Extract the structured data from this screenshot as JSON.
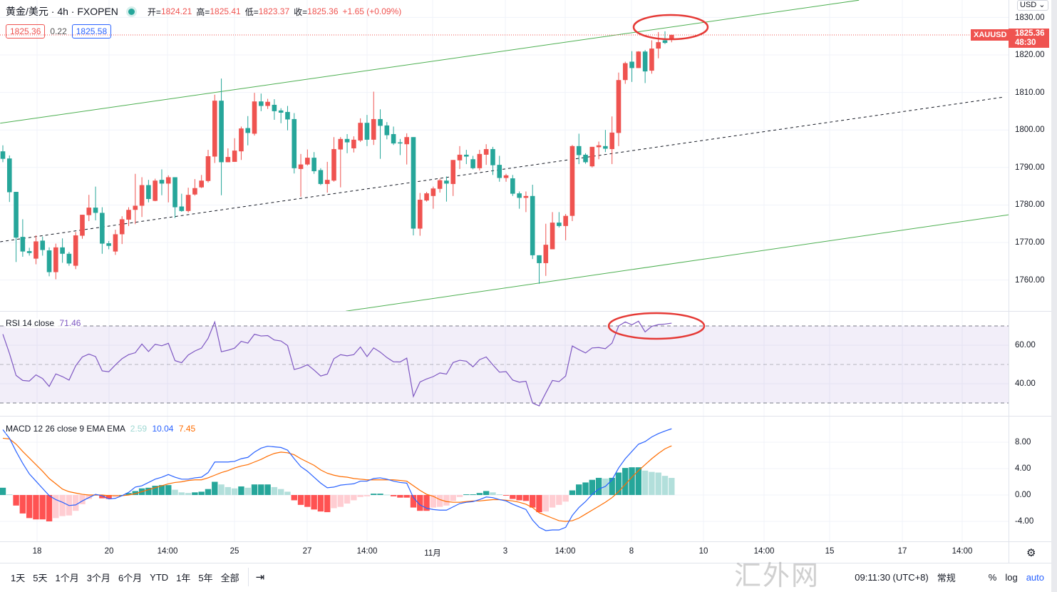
{
  "header": {
    "title": "黄金/美元 · 4h · FXOPEN",
    "open_label": "开=",
    "open": "1824.21",
    "high_label": "高=",
    "high": "1825.41",
    "low_label": "低=",
    "low": "1823.37",
    "close_label": "收=",
    "close": "1825.36",
    "change": "+1.65 (+0.09%)",
    "bid": "1825.36",
    "spread": "0.22",
    "ask": "1825.58"
  },
  "price_tag": {
    "symbol": "XAUUSD",
    "price": "1825.36",
    "countdown": "48:30"
  },
  "currency_button": "USD",
  "rsi_legend": {
    "label": "RSI 14 close",
    "value": "71.46"
  },
  "macd_legend": {
    "label": "MACD 12 26 close 9 EMA EMA",
    "hist": "2.59",
    "macd": "10.04",
    "signal": "7.45"
  },
  "colors": {
    "up": "#ef5350",
    "down": "#26a69a",
    "rsi": "#7e57c2",
    "macd": "#2962ff",
    "signal": "#ff6d00",
    "channel": "#4caf50",
    "annotation": "#e53935"
  },
  "time_axis": [
    "18",
    "20",
    "14:00",
    "25",
    "27",
    "14:00",
    "11月",
    "3",
    "14:00",
    "8",
    "10",
    "14:00",
    "15",
    "17",
    "14:00"
  ],
  "bottom_bar": {
    "ranges": [
      "1天",
      "5天",
      "1个月",
      "3个月",
      "6个月",
      "YTD",
      "1年",
      "5年",
      "全部"
    ],
    "clock": "09:11:30 (UTC+8)",
    "session": "常规",
    "percent": "%",
    "log": "log",
    "auto": "auto"
  },
  "watermark": "汇外网",
  "chart_data": [
    {
      "type": "candlestick",
      "title": "黄金/美元 · 4h · FXOPEN",
      "ylim": [
        1750,
        1832
      ],
      "yticks": [
        "1830.00",
        "1820.00",
        "1810.00",
        "1800.00",
        "1790.00",
        "1780.00",
        "1770.00",
        "1760.00"
      ],
      "ytick_values": [
        1830,
        1820,
        1810,
        1800,
        1790,
        1780,
        1770,
        1760
      ],
      "last_price": 1825.36,
      "ohlc": [
        [
          1794.3,
          1795.9,
          1791.4,
          1792.3
        ],
        [
          1792.4,
          1793.2,
          1780.8,
          1783.4
        ],
        [
          1783.5,
          1783.5,
          1764.8,
          1771.3
        ],
        [
          1771.5,
          1776.2,
          1766.2,
          1767.6
        ],
        [
          1767.7,
          1768.6,
          1766.5,
          1767.2
        ],
        [
          1765.7,
          1771.9,
          1764.2,
          1770.3
        ],
        [
          1770.5,
          1771.6,
          1766.5,
          1768.0
        ],
        [
          1767.9,
          1768.7,
          1761.0,
          1762.1
        ],
        [
          1762.1,
          1769.7,
          1760.2,
          1768.7
        ],
        [
          1768.7,
          1771.1,
          1764.6,
          1767.0
        ],
        [
          1767.0,
          1767.5,
          1763.8,
          1764.4
        ],
        [
          1763.8,
          1772.8,
          1762.9,
          1771.9
        ],
        [
          1771.8,
          1777.4,
          1771.0,
          1777.4
        ],
        [
          1777.3,
          1782.7,
          1775.7,
          1779.3
        ],
        [
          1779.3,
          1784.9,
          1775.9,
          1777.9
        ],
        [
          1777.9,
          1779.4,
          1767.0,
          1769.7
        ],
        [
          1769.8,
          1770.4,
          1768.2,
          1769.1
        ],
        [
          1767.6,
          1773.4,
          1766.7,
          1772.2
        ],
        [
          1772.2,
          1777.0,
          1769.6,
          1776.2
        ],
        [
          1776.1,
          1779.4,
          1774.4,
          1778.7
        ],
        [
          1778.7,
          1788.3,
          1774.9,
          1779.8
        ],
        [
          1779.8,
          1787.4,
          1776.8,
          1785.3
        ],
        [
          1785.3,
          1786.7,
          1780.7,
          1781.6
        ],
        [
          1781.1,
          1787.0,
          1781.0,
          1786.5
        ],
        [
          1786.7,
          1789.5,
          1782.6,
          1785.7
        ],
        [
          1785.7,
          1787.9,
          1780.7,
          1787.4
        ],
        [
          1787.4,
          1787.4,
          1776.5,
          1779.4
        ],
        [
          1779.6,
          1783.0,
          1778.2,
          1778.4
        ],
        [
          1778.4,
          1784.6,
          1778.0,
          1782.7
        ],
        [
          1782.8,
          1786.9,
          1782.5,
          1784.5
        ],
        [
          1784.7,
          1788.0,
          1784.5,
          1786.5
        ],
        [
          1786.4,
          1794.7,
          1786.0,
          1793.0
        ],
        [
          1792.9,
          1809.4,
          1791.2,
          1807.8
        ],
        [
          1807.8,
          1813.7,
          1782.6,
          1791.4
        ],
        [
          1791.4,
          1795.1,
          1791.4,
          1792.8
        ],
        [
          1791.5,
          1797.8,
          1791.5,
          1794.5
        ],
        [
          1794.3,
          1800.9,
          1792.0,
          1800.4
        ],
        [
          1800.5,
          1803.7,
          1795.9,
          1799.2
        ],
        [
          1799.0,
          1809.9,
          1798.5,
          1807.6
        ],
        [
          1807.6,
          1809.7,
          1805.0,
          1806.4
        ],
        [
          1806.4,
          1808.3,
          1805.6,
          1807.5
        ],
        [
          1806.7,
          1808.2,
          1802.7,
          1805.0
        ],
        [
          1805.2,
          1805.8,
          1801.8,
          1804.6
        ],
        [
          1804.8,
          1806.4,
          1799.9,
          1802.8
        ],
        [
          1802.9,
          1804.5,
          1788.4,
          1789.8
        ],
        [
          1789.6,
          1793.6,
          1782.2,
          1790.8
        ],
        [
          1790.8,
          1794.8,
          1790.5,
          1792.6
        ],
        [
          1792.6,
          1794.1,
          1788.3,
          1789.0
        ],
        [
          1789.3,
          1789.8,
          1785.3,
          1785.6
        ],
        [
          1785.6,
          1791.5,
          1783.3,
          1786.7
        ],
        [
          1786.5,
          1798.1,
          1786.2,
          1794.9
        ],
        [
          1794.8,
          1798.1,
          1784.7,
          1797.6
        ],
        [
          1797.6,
          1798.9,
          1793.8,
          1796.7
        ],
        [
          1795.1,
          1798.3,
          1794.0,
          1797.4
        ],
        [
          1797.2,
          1803.1,
          1796.8,
          1801.9
        ],
        [
          1801.9,
          1804.0,
          1795.7,
          1797.4
        ],
        [
          1797.4,
          1810.2,
          1796.0,
          1802.9
        ],
        [
          1802.9,
          1805.5,
          1792.3,
          1801.1
        ],
        [
          1801.2,
          1802.1,
          1797.5,
          1798.6
        ],
        [
          1798.9,
          1800.9,
          1796.0,
          1796.4
        ],
        [
          1796.7,
          1797.6,
          1793.3,
          1796.4
        ],
        [
          1796.2,
          1799.1,
          1790.8,
          1798.1
        ],
        [
          1798.1,
          1798.1,
          1771.9,
          1773.7
        ],
        [
          1773.7,
          1783.2,
          1771.8,
          1781.4
        ],
        [
          1781.2,
          1783.5,
          1780.9,
          1783.1
        ],
        [
          1782.4,
          1784.9,
          1779.0,
          1784.4
        ],
        [
          1784.3,
          1787.0,
          1783.3,
          1786.6
        ],
        [
          1786.5,
          1787.6,
          1780.9,
          1785.7
        ],
        [
          1785.6,
          1792.0,
          1782.4,
          1792.0
        ],
        [
          1791.9,
          1795.7,
          1789.6,
          1793.4
        ],
        [
          1793.4,
          1794.7,
          1790.9,
          1792.9
        ],
        [
          1792.2,
          1793.1,
          1789.5,
          1789.8
        ],
        [
          1789.8,
          1794.7,
          1789.2,
          1793.6
        ],
        [
          1793.4,
          1796.2,
          1790.7,
          1794.9
        ],
        [
          1794.9,
          1795.5,
          1788.0,
          1790.6
        ],
        [
          1790.7,
          1793.1,
          1786.2,
          1787.2
        ],
        [
          1787.2,
          1788.3,
          1786.2,
          1787.9
        ],
        [
          1787.1,
          1788.0,
          1782.4,
          1783.0
        ],
        [
          1783.1,
          1783.6,
          1779.0,
          1781.9
        ],
        [
          1781.9,
          1783.6,
          1778.1,
          1782.4
        ],
        [
          1782.4,
          1785.4,
          1765.6,
          1766.6
        ],
        [
          1766.6,
          1766.6,
          1759.0,
          1764.5
        ],
        [
          1764.5,
          1775.0,
          1761.1,
          1769.4
        ],
        [
          1768.2,
          1778.1,
          1768.2,
          1775.3
        ],
        [
          1775.3,
          1778.1,
          1774.0,
          1774.4
        ],
        [
          1774.4,
          1777.6,
          1770.6,
          1777.1
        ],
        [
          1777.1,
          1796.0,
          1775.7,
          1795.7
        ],
        [
          1795.7,
          1799.0,
          1790.9,
          1793.3
        ],
        [
          1793.4,
          1793.8,
          1791.0,
          1791.4
        ],
        [
          1790.3,
          1795.5,
          1790.0,
          1795.5
        ],
        [
          1795.4,
          1796.9,
          1792.2,
          1795.9
        ],
        [
          1795.7,
          1800.0,
          1794.1,
          1795.0
        ],
        [
          1794.9,
          1803.6,
          1790.9,
          1799.3
        ],
        [
          1799.2,
          1815.3,
          1795.7,
          1813.3
        ],
        [
          1813.3,
          1818.2,
          1812.3,
          1817.8
        ],
        [
          1818.2,
          1821.0,
          1812.8,
          1816.5
        ],
        [
          1816.5,
          1821.0,
          1816.5,
          1820.9
        ],
        [
          1820.9,
          1821.3,
          1812.5,
          1815.6
        ],
        [
          1815.8,
          1823.9,
          1815.0,
          1821.7
        ],
        [
          1821.7,
          1826.1,
          1819.1,
          1823.4
        ],
        [
          1823.9,
          1826.3,
          1822.9,
          1823.2
        ],
        [
          1824.21,
          1825.41,
          1823.37,
          1825.36
        ]
      ],
      "trendlines": [
        {
          "name": "channel-upper",
          "style": "solid",
          "from": [
            -0.4,
            1801.8
          ],
          "to": [
            129.3,
            1834.6
          ]
        },
        {
          "name": "channel-middle",
          "style": "dashed",
          "from": [
            -0.4,
            1770.2
          ],
          "to": [
            151.3,
            1808.8
          ]
        },
        {
          "name": "channel-lower",
          "style": "solid",
          "from": [
            51.8,
            1751.7
          ],
          "to": [
            151.9,
            1777.4
          ]
        }
      ]
    },
    {
      "type": "line",
      "title": "RSI 14 close",
      "ylim": [
        25,
        76
      ],
      "yticks": [
        "60.00",
        "40.00"
      ],
      "ytick_values": [
        60,
        40
      ],
      "bands": [
        70,
        50,
        30
      ],
      "values": [
        65.7,
        55.7,
        44.3,
        41.7,
        41.4,
        44.6,
        42.7,
        38.6,
        45.1,
        43.7,
        41.9,
        49.3,
        53.9,
        55.4,
        54.1,
        46.7,
        46.2,
        49.8,
        53.0,
        55.1,
        56.1,
        60.6,
        56.7,
        60.5,
        59.7,
        61.0,
        52.0,
        50.9,
        54.9,
        57.0,
        58.5,
        63.6,
        72.1,
        56.6,
        57.4,
        58.5,
        62.0,
        61.1,
        65.7,
        64.8,
        65.0,
        62.7,
        62.2,
        59.8,
        47.4,
        48.3,
        49.9,
        47.1,
        44.0,
        45.0,
        53.0,
        55.1,
        54.5,
        55.1,
        59.1,
        54.1,
        58.6,
        56.4,
        53.6,
        51.4,
        51.3,
        53.3,
        33.4,
        40.9,
        42.5,
        43.7,
        45.6,
        45.0,
        51.0,
        52.2,
        51.7,
        48.8,
        52.5,
        53.9,
        49.8,
        46.0,
        46.3,
        41.9,
        40.8,
        41.3,
        30.0,
        28.5,
        35.2,
        41.7,
        41.1,
        44.0,
        59.6,
        57.7,
        56.0,
        58.6,
        58.8,
        58.2,
        61.1,
        70.0,
        72.1,
        70.6,
        72.5,
        66.9,
        69.8,
        70.7,
        71.0,
        71.46
      ]
    },
    {
      "type": "bar+line",
      "title": "MACD 12 26 close 9 EMA EMA",
      "ylim": [
        -6.5,
        11
      ],
      "yticks": [
        "8.00",
        "4.00",
        "0.00",
        "-4.00"
      ],
      "ytick_values": [
        8,
        4,
        0,
        -4
      ],
      "series": [
        {
          "name": "MACD",
          "values": [
            9.9,
            8.6,
            6.6,
            4.8,
            3.2,
            2.1,
            1.0,
            -0.1,
            -0.7,
            -1.1,
            -1.6,
            -1.5,
            -0.9,
            -0.4,
            0.1,
            -0.1,
            -0.6,
            -0.5,
            -0.1,
            0.4,
            1.2,
            1.4,
            1.9,
            2.4,
            2.7,
            3.1,
            2.7,
            2.4,
            2.4,
            2.6,
            2.7,
            3.4,
            5.0,
            5.0,
            5.0,
            5.1,
            5.5,
            5.7,
            6.5,
            7.1,
            7.4,
            7.3,
            7.2,
            6.8,
            5.5,
            4.3,
            3.6,
            2.7,
            1.8,
            1.1,
            1.2,
            1.5,
            1.6,
            1.7,
            2.1,
            2.1,
            2.5,
            2.6,
            2.4,
            2.1,
            1.9,
            1.8,
            -0.4,
            -1.5,
            -2.0,
            -2.2,
            -2.3,
            -2.3,
            -1.8,
            -1.3,
            -1.1,
            -1.0,
            -0.7,
            -0.3,
            -0.4,
            -0.7,
            -0.9,
            -1.4,
            -1.8,
            -2.2,
            -3.8,
            -4.9,
            -5.4,
            -5.3,
            -5.3,
            -4.9,
            -3.1,
            -1.9,
            -1.0,
            0.1,
            0.9,
            1.3,
            2.3,
            4.1,
            5.5,
            6.6,
            7.7,
            8.1,
            8.8,
            9.3,
            9.7,
            10.04
          ]
        },
        {
          "name": "Signal",
          "values": [
            8.6,
            8.5,
            7.7,
            6.6,
            5.6,
            4.6,
            3.6,
            2.5,
            1.7,
            0.9,
            0.5,
            0.3,
            0.1,
            0.0,
            0.0,
            0.0,
            -0.1,
            -0.1,
            -0.1,
            0.0,
            0.2,
            0.5,
            0.8,
            1.1,
            1.4,
            1.7,
            1.9,
            2.0,
            2.2,
            2.3,
            2.3,
            2.6,
            3.0,
            3.4,
            3.7,
            4.1,
            4.4,
            4.6,
            5.0,
            5.4,
            5.9,
            6.3,
            6.5,
            6.4,
            6.1,
            5.5,
            5.0,
            4.5,
            3.8,
            3.3,
            3.0,
            2.8,
            2.7,
            2.5,
            2.4,
            2.3,
            2.3,
            2.3,
            2.3,
            2.3,
            2.2,
            2.1,
            1.4,
            0.7,
            0.1,
            -0.2,
            -0.7,
            -1.0,
            -1.1,
            -1.1,
            -1.0,
            -0.9,
            -0.9,
            -0.8,
            -0.7,
            -0.7,
            -0.8,
            -0.9,
            -1.1,
            -1.4,
            -1.9,
            -2.7,
            -3.1,
            -3.5,
            -3.9,
            -4.0,
            -3.9,
            -3.5,
            -2.9,
            -2.3,
            -1.7,
            -1.1,
            -0.4,
            0.5,
            1.6,
            2.7,
            3.7,
            4.6,
            5.5,
            6.3,
            7.0,
            7.45
          ]
        },
        {
          "name": "Histogram",
          "values": [
            1.1,
            0.1,
            -1.6,
            -2.8,
            -3.5,
            -3.7,
            -3.7,
            -4.0,
            -3.5,
            -3.2,
            -3.1,
            -2.4,
            -1.4,
            -0.6,
            -0.1,
            -0.5,
            -0.6,
            -0.3,
            0.0,
            0.3,
            0.6,
            1.0,
            1.1,
            1.4,
            1.5,
            1.5,
            0.8,
            0.4,
            0.3,
            0.4,
            0.5,
            0.9,
            2.0,
            1.6,
            1.2,
            1.0,
            1.3,
            1.1,
            1.6,
            1.6,
            1.6,
            1.2,
            0.9,
            0.5,
            -0.8,
            -1.5,
            -1.8,
            -2.2,
            -2.5,
            -2.6,
            -2.0,
            -1.8,
            -1.3,
            -0.8,
            -0.3,
            -0.2,
            0.2,
            0.2,
            0.05,
            -0.2,
            -0.4,
            -0.4,
            -1.9,
            -2.4,
            -2.4,
            -1.9,
            -1.8,
            -1.6,
            -0.9,
            -0.3,
            0.1,
            0.1,
            0.3,
            0.6,
            0.4,
            0.1,
            -0.1,
            -0.6,
            -0.8,
            -0.9,
            -1.9,
            -2.6,
            -2.5,
            -1.9,
            -1.5,
            -1.0,
            0.7,
            1.6,
            1.9,
            2.3,
            2.6,
            2.5,
            2.6,
            3.4,
            4.1,
            4.2,
            4.2,
            3.7,
            3.5,
            3.4,
            2.9,
            2.59
          ]
        }
      ]
    }
  ]
}
